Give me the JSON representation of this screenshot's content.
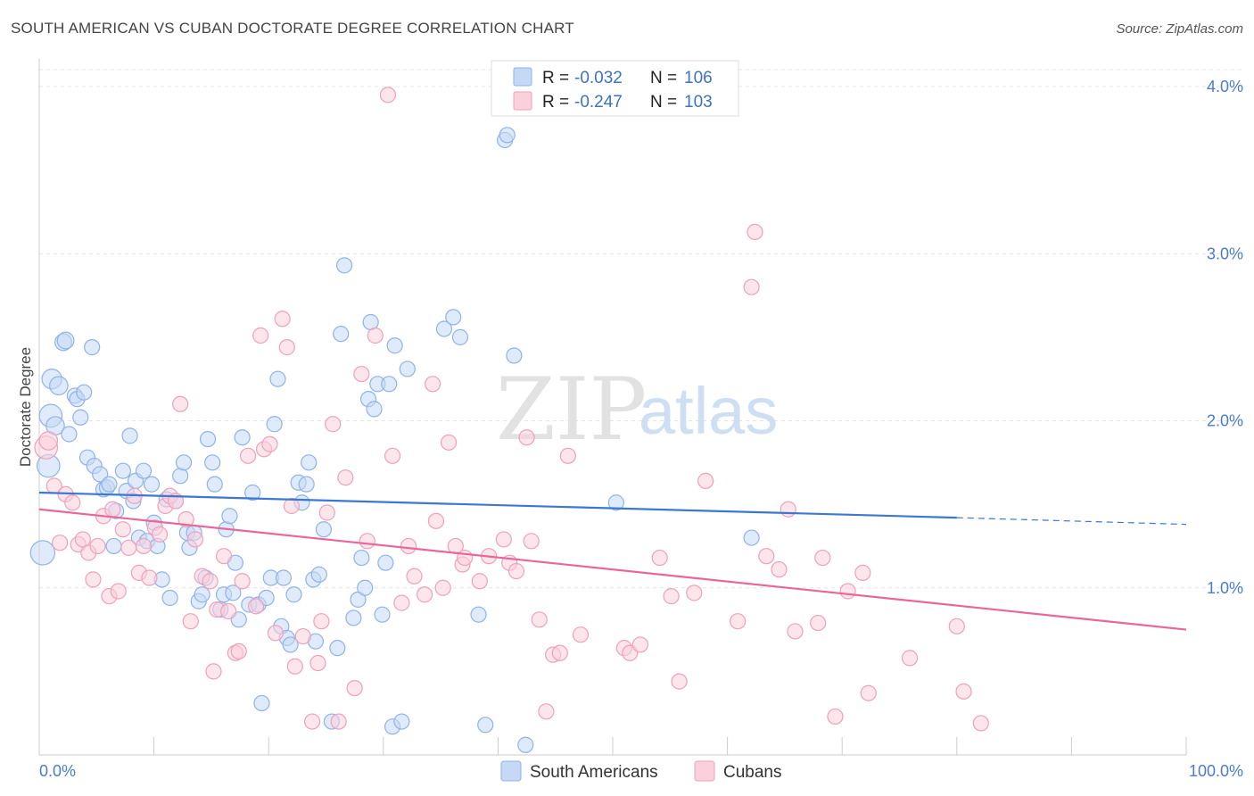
{
  "title": "SOUTH AMERICAN VS CUBAN DOCTORATE DEGREE CORRELATION CHART",
  "source": "Source: ZipAtlas.com",
  "watermark": {
    "zip": "ZIP",
    "atlas": "atlas"
  },
  "legend": {
    "rows": [
      {
        "r_label": "R = ",
        "r_value": "-0.032",
        "n_label": "N = ",
        "n_value": "106",
        "color": "#8fb3e8",
        "fill": "#c5d8f5"
      },
      {
        "r_label": "R = ",
        "r_value": "-0.247",
        "n_label": "N = ",
        "n_value": "103",
        "color": "#f0a0ba",
        "fill": "#fbd0dd"
      }
    ]
  },
  "bottom_legend": [
    {
      "label": "South Americans",
      "color": "#8fb3e8",
      "fill": "#c5d8f5"
    },
    {
      "label": "Cubans",
      "color": "#f0a0ba",
      "fill": "#fbd0dd"
    }
  ],
  "chart_data": {
    "type": "scatter",
    "title": "SOUTH AMERICAN VS CUBAN DOCTORATE DEGREE CORRELATION CHART",
    "xlabel": "",
    "ylabel": "Doctorate Degree",
    "xlim": [
      0,
      100
    ],
    "ylim": [
      0,
      4.1
    ],
    "x_tick_labels": [
      "0.0%",
      "100.0%"
    ],
    "y_ticks": [
      1.0,
      2.0,
      3.0,
      4.0
    ],
    "y_tick_labels": [
      "1.0%",
      "2.0%",
      "3.0%",
      "4.0%"
    ],
    "grid": true,
    "series": [
      {
        "name": "South Americans",
        "color": "#3b78d4",
        "point_stroke": "#8fb3e8",
        "point_fill": "rgba(197,216,245,0.55)",
        "trend": {
          "x0": 0,
          "y0": 1.57,
          "x1": 80,
          "y1": 1.42,
          "dash_to": 100,
          "dash_y": 1.38
        },
        "points": [
          [
            0.3,
            1.21,
            1.6
          ],
          [
            0.8,
            1.73,
            1.5
          ],
          [
            1,
            2.03,
            1.5
          ],
          [
            1.1,
            2.25,
            1.3
          ],
          [
            1.4,
            1.97,
            1.2
          ],
          [
            1.7,
            2.21,
            1.2
          ],
          [
            2.1,
            2.47,
            1.1
          ],
          [
            2.3,
            2.48,
            1.1
          ],
          [
            2.6,
            1.92,
            1
          ],
          [
            3.1,
            2.15,
            1
          ],
          [
            3.3,
            2.13,
            1
          ],
          [
            3.6,
            2.02,
            1
          ],
          [
            3.9,
            2.17,
            1
          ],
          [
            4.2,
            1.78,
            1
          ],
          [
            4.6,
            2.44,
            1
          ],
          [
            4.8,
            1.73,
            1
          ],
          [
            5.3,
            1.68,
            1
          ],
          [
            5.6,
            1.59,
            1
          ],
          [
            5.9,
            1.6,
            1
          ],
          [
            6.1,
            1.62,
            1
          ],
          [
            6.5,
            1.25,
            1
          ],
          [
            6.7,
            1.46,
            1
          ],
          [
            7.3,
            1.7,
            1
          ],
          [
            7.6,
            1.58,
            1
          ],
          [
            7.9,
            1.91,
            1
          ],
          [
            8.2,
            1.52,
            1
          ],
          [
            8.4,
            1.64,
            1
          ],
          [
            8.7,
            1.3,
            1
          ],
          [
            9.1,
            1.7,
            1
          ],
          [
            9.4,
            1.28,
            1
          ],
          [
            9.8,
            1.62,
            1
          ],
          [
            10,
            1.39,
            1
          ],
          [
            10.3,
            1.25,
            1
          ],
          [
            10.7,
            1.05,
            1
          ],
          [
            11.1,
            1.53,
            1
          ],
          [
            11.4,
            0.94,
            1
          ],
          [
            11.9,
            1.52,
            1
          ],
          [
            12.3,
            1.67,
            1
          ],
          [
            12.6,
            1.75,
            1
          ],
          [
            12.9,
            1.33,
            1
          ],
          [
            13.1,
            1.24,
            1
          ],
          [
            13.5,
            1.33,
            1
          ],
          [
            13.9,
            0.92,
            1
          ],
          [
            14.2,
            0.96,
            1
          ],
          [
            14.5,
            1.06,
            1
          ],
          [
            14.7,
            1.89,
            1
          ],
          [
            15.1,
            1.75,
            1
          ],
          [
            15.3,
            1.62,
            1
          ],
          [
            15.8,
            0.87,
            1
          ],
          [
            16.1,
            0.96,
            1
          ],
          [
            16.3,
            1.35,
            1
          ],
          [
            16.6,
            1.43,
            1
          ],
          [
            16.9,
            0.97,
            1
          ],
          [
            17.1,
            1.15,
            1
          ],
          [
            17.4,
            0.81,
            1
          ],
          [
            17.7,
            1.9,
            1
          ],
          [
            18.3,
            0.9,
            1
          ],
          [
            18.6,
            1.57,
            1
          ],
          [
            19.1,
            0.9,
            1
          ],
          [
            19.4,
            0.31,
            1
          ],
          [
            19.8,
            0.94,
            1
          ],
          [
            20.2,
            1.06,
            1
          ],
          [
            20.5,
            1.98,
            1
          ],
          [
            20.8,
            2.25,
            1
          ],
          [
            21.1,
            0.77,
            1
          ],
          [
            21.3,
            1.06,
            1
          ],
          [
            21.6,
            0.7,
            1
          ],
          [
            21.9,
            0.66,
            1
          ],
          [
            22.2,
            0.96,
            1
          ],
          [
            22.6,
            1.63,
            1
          ],
          [
            22.9,
            1.51,
            1
          ],
          [
            23.3,
            1.62,
            1
          ],
          [
            23.5,
            1.75,
            1
          ],
          [
            23.9,
            1.05,
            1
          ],
          [
            24.1,
            0.68,
            1
          ],
          [
            24.4,
            1.08,
            1
          ],
          [
            24.8,
            1.35,
            1
          ],
          [
            25.5,
            0.2,
            1
          ],
          [
            26,
            0.64,
            1
          ],
          [
            26.3,
            2.52,
            1
          ],
          [
            26.6,
            2.93,
            1
          ],
          [
            27.4,
            0.82,
            1
          ],
          [
            27.8,
            0.93,
            1
          ],
          [
            28.1,
            1.18,
            1
          ],
          [
            28.4,
            1.0,
            1
          ],
          [
            28.7,
            2.13,
            1
          ],
          [
            28.9,
            2.59,
            1
          ],
          [
            29.2,
            2.07,
            1
          ],
          [
            29.5,
            2.22,
            1
          ],
          [
            29.9,
            0.84,
            1
          ],
          [
            30.2,
            1.15,
            1
          ],
          [
            30.5,
            2.22,
            1
          ],
          [
            30.8,
            0.17,
            1
          ],
          [
            31,
            2.45,
            1
          ],
          [
            31.6,
            0.2,
            1
          ],
          [
            32.1,
            2.31,
            1
          ],
          [
            35.3,
            2.55,
            1
          ],
          [
            36.1,
            2.62,
            1
          ],
          [
            36.7,
            2.5,
            1
          ],
          [
            38.3,
            0.84,
            1
          ],
          [
            38.9,
            0.18,
            1
          ],
          [
            40.6,
            3.68,
            1
          ],
          [
            40.8,
            3.71,
            1
          ],
          [
            41.4,
            2.39,
            1
          ],
          [
            42.4,
            0.06,
            1
          ],
          [
            50.3,
            1.51,
            1
          ],
          [
            62.1,
            1.3,
            1
          ]
        ]
      },
      {
        "name": "Cubans",
        "color": "#e8679a",
        "point_stroke": "#f0a0ba",
        "point_fill": "rgba(251,208,221,0.55)",
        "trend": {
          "x0": 0,
          "y0": 1.47,
          "x1": 100,
          "y1": 0.75
        },
        "points": [
          [
            0.6,
            1.84,
            1.5
          ],
          [
            0.8,
            1.88,
            1.2
          ],
          [
            1.3,
            1.61,
            1
          ],
          [
            1.8,
            1.27,
            1
          ],
          [
            2.3,
            1.56,
            1
          ],
          [
            2.9,
            1.51,
            1
          ],
          [
            3.4,
            1.26,
            1
          ],
          [
            3.8,
            1.29,
            1
          ],
          [
            4.3,
            1.21,
            1
          ],
          [
            4.7,
            1.05,
            1
          ],
          [
            5.1,
            1.25,
            1
          ],
          [
            5.6,
            1.43,
            1
          ],
          [
            6.1,
            0.95,
            1
          ],
          [
            6.4,
            1.47,
            1
          ],
          [
            6.9,
            0.98,
            1
          ],
          [
            7.3,
            1.35,
            1
          ],
          [
            7.8,
            1.24,
            1
          ],
          [
            8.3,
            1.55,
            1
          ],
          [
            8.7,
            1.09,
            1
          ],
          [
            9.1,
            1.25,
            1
          ],
          [
            9.6,
            1.06,
            1
          ],
          [
            10.1,
            1.36,
            1
          ],
          [
            10.5,
            1.32,
            1
          ],
          [
            11,
            1.49,
            1
          ],
          [
            11.4,
            1.55,
            1
          ],
          [
            11.9,
            1.52,
            1
          ],
          [
            12.3,
            2.1,
            1
          ],
          [
            12.8,
            1.41,
            1
          ],
          [
            13.2,
            0.8,
            1
          ],
          [
            13.6,
            1.29,
            1
          ],
          [
            14.2,
            1.07,
            1
          ],
          [
            14.9,
            1.04,
            1
          ],
          [
            15.2,
            0.5,
            1
          ],
          [
            15.5,
            0.87,
            1
          ],
          [
            16.1,
            1.19,
            1
          ],
          [
            16.5,
            0.86,
            1
          ],
          [
            17.1,
            0.61,
            1
          ],
          [
            17.4,
            0.62,
            1
          ],
          [
            17.7,
            1.04,
            1
          ],
          [
            18.2,
            1.79,
            1
          ],
          [
            18.9,
            0.89,
            1
          ],
          [
            19.3,
            2.51,
            1
          ],
          [
            19.6,
            1.83,
            1
          ],
          [
            20.1,
            1.86,
            1
          ],
          [
            20.6,
            0.73,
            1
          ],
          [
            21.2,
            2.61,
            1
          ],
          [
            21.6,
            2.44,
            1
          ],
          [
            22,
            1.49,
            1
          ],
          [
            22.3,
            0.53,
            1
          ],
          [
            23,
            0.71,
            1
          ],
          [
            23.8,
            0.2,
            1
          ],
          [
            24.3,
            0.55,
            1
          ],
          [
            24.6,
            0.8,
            1
          ],
          [
            25.1,
            1.45,
            1
          ],
          [
            25.6,
            1.98,
            1
          ],
          [
            26.1,
            0.2,
            1
          ],
          [
            26.7,
            1.66,
            1
          ],
          [
            27.5,
            0.4,
            1
          ],
          [
            28.1,
            2.28,
            1
          ],
          [
            28.6,
            1.28,
            1
          ],
          [
            29.3,
            2.51,
            1
          ],
          [
            30.4,
            3.95,
            1
          ],
          [
            30.8,
            1.79,
            1
          ],
          [
            31.6,
            0.91,
            1
          ],
          [
            32.2,
            1.25,
            1
          ],
          [
            32.7,
            1.07,
            1
          ],
          [
            33.6,
            0.96,
            1
          ],
          [
            34.3,
            2.22,
            1
          ],
          [
            34.6,
            1.4,
            1
          ],
          [
            35.2,
            1.0,
            1
          ],
          [
            35.7,
            1.87,
            1
          ],
          [
            36.3,
            1.25,
            1
          ],
          [
            36.9,
            1.14,
            1
          ],
          [
            37.1,
            1.18,
            1
          ],
          [
            38.4,
            1.04,
            1
          ],
          [
            39.2,
            1.19,
            1
          ],
          [
            40.5,
            1.29,
            1
          ],
          [
            41,
            1.15,
            1
          ],
          [
            41.6,
            1.1,
            1
          ],
          [
            42.5,
            1.9,
            1
          ],
          [
            42.9,
            1.28,
            1
          ],
          [
            43.6,
            0.81,
            1
          ],
          [
            44.2,
            0.26,
            1
          ],
          [
            44.8,
            0.6,
            1
          ],
          [
            45.4,
            0.61,
            1
          ],
          [
            46.1,
            1.79,
            1
          ],
          [
            47.2,
            0.72,
            1
          ],
          [
            51,
            0.64,
            1
          ],
          [
            51.5,
            0.61,
            1
          ],
          [
            52.4,
            0.66,
            1
          ],
          [
            54.1,
            1.18,
            1
          ],
          [
            55.1,
            0.95,
            1
          ],
          [
            55.8,
            0.44,
            1
          ],
          [
            57.1,
            0.97,
            1
          ],
          [
            58.1,
            1.64,
            1
          ],
          [
            60.9,
            0.8,
            1
          ],
          [
            62.1,
            2.8,
            1
          ],
          [
            62.4,
            3.13,
            1
          ],
          [
            63.4,
            1.19,
            1
          ],
          [
            64.5,
            1.11,
            1
          ],
          [
            65.3,
            1.47,
            1
          ],
          [
            65.9,
            0.74,
            1
          ],
          [
            67.9,
            0.79,
            1
          ],
          [
            68.3,
            1.18,
            1
          ],
          [
            69.4,
            0.23,
            1
          ],
          [
            70.5,
            0.98,
            1
          ],
          [
            71.8,
            1.09,
            1
          ],
          [
            72.3,
            0.37,
            1
          ],
          [
            75.9,
            0.58,
            1
          ],
          [
            80,
            0.77,
            1
          ],
          [
            80.6,
            0.38,
            1
          ],
          [
            82.1,
            0.19,
            1
          ]
        ]
      }
    ]
  }
}
